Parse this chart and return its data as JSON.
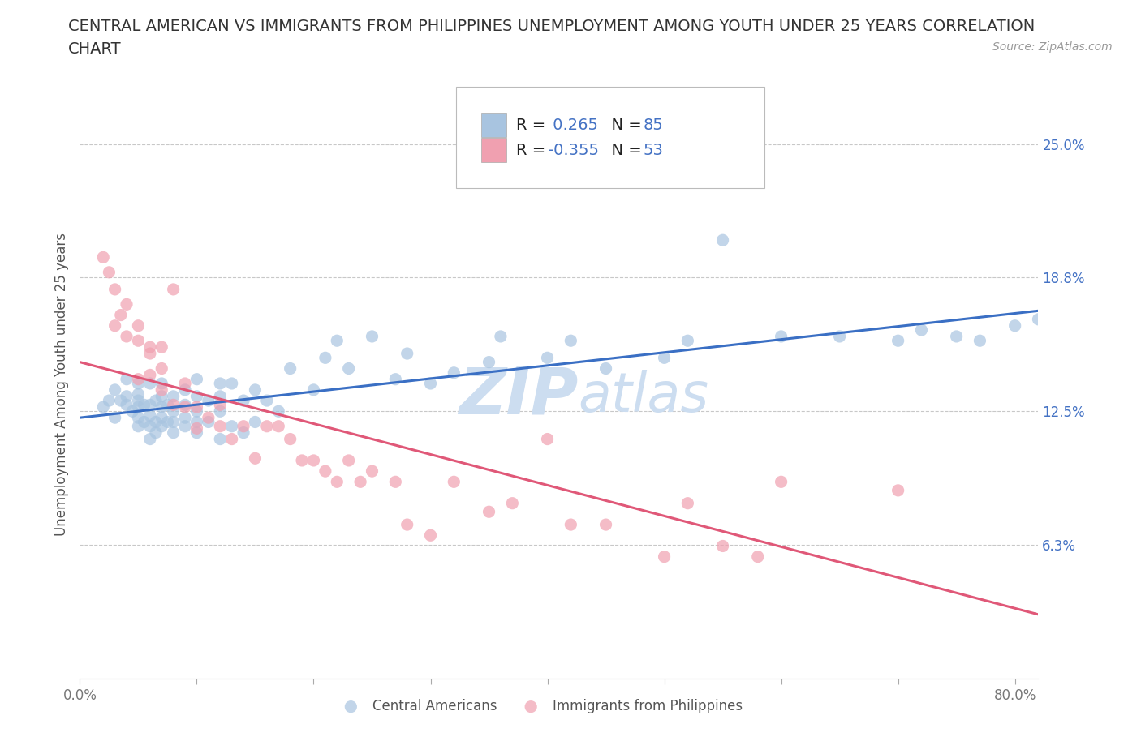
{
  "title_line1": "CENTRAL AMERICAN VS IMMIGRANTS FROM PHILIPPINES UNEMPLOYMENT AMONG YOUTH UNDER 25 YEARS CORRELATION",
  "title_line2": "CHART",
  "source_text": "Source: ZipAtlas.com",
  "ylabel": "Unemployment Among Youth under 25 years",
  "x_ticks": [
    0.0,
    0.1,
    0.2,
    0.3,
    0.4,
    0.5,
    0.6,
    0.7,
    0.8
  ],
  "y_tick_positions": [
    0.0,
    0.0625,
    0.125,
    0.1875,
    0.25
  ],
  "y_tick_labels": [
    "",
    "6.3%",
    "12.5%",
    "18.8%",
    "25.0%"
  ],
  "xlim": [
    0.0,
    0.82
  ],
  "ylim": [
    0.0,
    0.275
  ],
  "blue_R": "0.265",
  "blue_N": "85",
  "pink_R": "-0.355",
  "pink_N": "53",
  "blue_color": "#a8c4e0",
  "pink_color": "#f0a0b0",
  "blue_line_color": "#3a6fc4",
  "pink_line_color": "#e05878",
  "tick_color": "#4472c4",
  "watermark_color": "#ccddf0",
  "grid_color": "#c8c8c8",
  "background_color": "#ffffff",
  "blue_scatter_x": [
    0.02,
    0.025,
    0.03,
    0.03,
    0.035,
    0.04,
    0.04,
    0.04,
    0.045,
    0.05,
    0.05,
    0.05,
    0.05,
    0.05,
    0.05,
    0.055,
    0.055,
    0.06,
    0.06,
    0.06,
    0.06,
    0.06,
    0.065,
    0.065,
    0.065,
    0.07,
    0.07,
    0.07,
    0.07,
    0.07,
    0.075,
    0.075,
    0.08,
    0.08,
    0.08,
    0.08,
    0.09,
    0.09,
    0.09,
    0.09,
    0.1,
    0.1,
    0.1,
    0.1,
    0.1,
    0.11,
    0.11,
    0.12,
    0.12,
    0.12,
    0.12,
    0.13,
    0.13,
    0.14,
    0.14,
    0.15,
    0.15,
    0.16,
    0.17,
    0.18,
    0.2,
    0.21,
    0.22,
    0.23,
    0.25,
    0.27,
    0.28,
    0.3,
    0.32,
    0.35,
    0.36,
    0.4,
    0.42,
    0.45,
    0.5,
    0.52,
    0.55,
    0.6,
    0.65,
    0.7,
    0.72,
    0.75,
    0.77,
    0.8,
    0.82
  ],
  "blue_scatter_y": [
    0.127,
    0.13,
    0.122,
    0.135,
    0.13,
    0.128,
    0.132,
    0.14,
    0.125,
    0.118,
    0.122,
    0.127,
    0.13,
    0.133,
    0.138,
    0.12,
    0.128,
    0.112,
    0.118,
    0.123,
    0.128,
    0.138,
    0.115,
    0.12,
    0.13,
    0.118,
    0.122,
    0.127,
    0.132,
    0.138,
    0.12,
    0.128,
    0.115,
    0.12,
    0.125,
    0.132,
    0.118,
    0.122,
    0.128,
    0.135,
    0.115,
    0.12,
    0.125,
    0.132,
    0.14,
    0.12,
    0.13,
    0.112,
    0.125,
    0.132,
    0.138,
    0.118,
    0.138,
    0.115,
    0.13,
    0.12,
    0.135,
    0.13,
    0.125,
    0.145,
    0.135,
    0.15,
    0.158,
    0.145,
    0.16,
    0.14,
    0.152,
    0.138,
    0.143,
    0.148,
    0.16,
    0.15,
    0.158,
    0.145,
    0.15,
    0.158,
    0.205,
    0.16,
    0.16,
    0.158,
    0.163,
    0.16,
    0.158,
    0.165,
    0.168
  ],
  "pink_scatter_x": [
    0.02,
    0.025,
    0.03,
    0.03,
    0.035,
    0.04,
    0.04,
    0.05,
    0.05,
    0.05,
    0.06,
    0.06,
    0.06,
    0.07,
    0.07,
    0.07,
    0.08,
    0.08,
    0.09,
    0.09,
    0.1,
    0.1,
    0.11,
    0.12,
    0.12,
    0.13,
    0.14,
    0.15,
    0.16,
    0.17,
    0.18,
    0.19,
    0.2,
    0.21,
    0.22,
    0.23,
    0.24,
    0.25,
    0.27,
    0.28,
    0.3,
    0.32,
    0.35,
    0.37,
    0.4,
    0.42,
    0.45,
    0.5,
    0.52,
    0.55,
    0.58,
    0.6,
    0.7
  ],
  "pink_scatter_y": [
    0.197,
    0.19,
    0.182,
    0.165,
    0.17,
    0.175,
    0.16,
    0.158,
    0.165,
    0.14,
    0.152,
    0.142,
    0.155,
    0.145,
    0.135,
    0.155,
    0.128,
    0.182,
    0.127,
    0.138,
    0.117,
    0.127,
    0.122,
    0.118,
    0.128,
    0.112,
    0.118,
    0.103,
    0.118,
    0.118,
    0.112,
    0.102,
    0.102,
    0.097,
    0.092,
    0.102,
    0.092,
    0.097,
    0.092,
    0.072,
    0.067,
    0.092,
    0.078,
    0.082,
    0.112,
    0.072,
    0.072,
    0.057,
    0.082,
    0.062,
    0.057,
    0.092,
    0.088
  ],
  "blue_trend_x": [
    0.0,
    0.82
  ],
  "blue_trend_y": [
    0.122,
    0.172
  ],
  "pink_trend_x": [
    0.0,
    0.82
  ],
  "pink_trend_y": [
    0.148,
    0.03
  ],
  "dot_size": 120,
  "dot_alpha": 0.7,
  "legend_fontsize": 14,
  "title_fontsize": 14,
  "axis_label_fontsize": 12,
  "tick_fontsize": 12
}
